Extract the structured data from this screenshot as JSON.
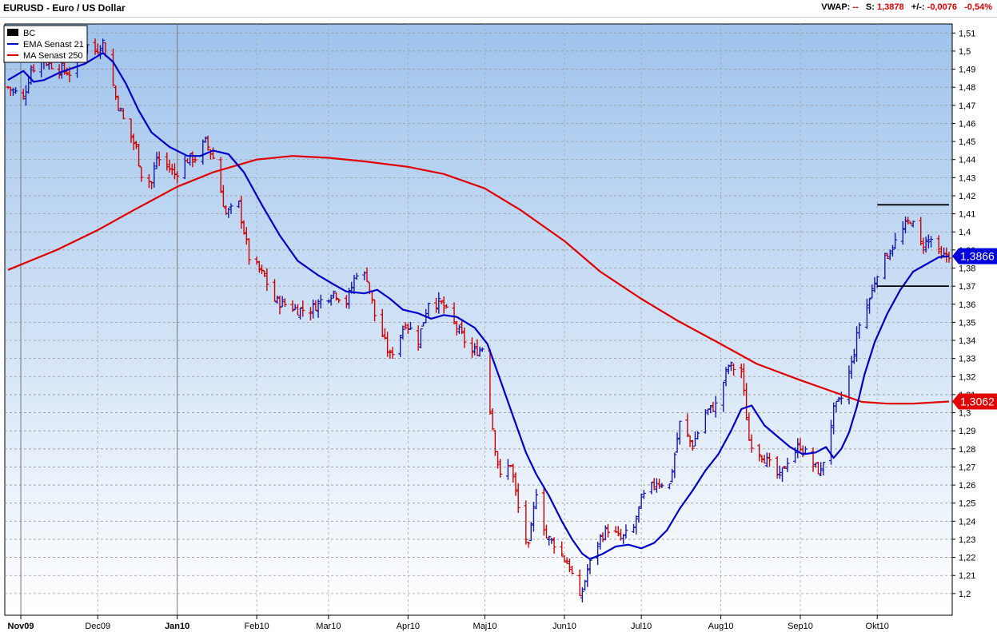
{
  "header": {
    "title": "EURUSD - Euro / US Dollar",
    "vwap_label": "VWAP:",
    "vwap_value": "--",
    "s_label": "S:",
    "s_value": "1,3878",
    "change_label": "+/-:",
    "change_value": "-0,0076",
    "change_pct": "-0,54%"
  },
  "legend": [
    {
      "label": "BC",
      "color": "#000000",
      "kind": "box"
    },
    {
      "label": "EMA  Senast 21",
      "color": "#0000cc",
      "kind": "line"
    },
    {
      "label": "MA  Senast 250",
      "color": "#e00000",
      "kind": "line"
    }
  ],
  "price_tags": [
    {
      "label": "1,3866",
      "value": 1.3866,
      "color": "#0000dd"
    },
    {
      "label": "1,3062",
      "value": 1.3062,
      "color": "#e00000"
    }
  ],
  "colors": {
    "bg_top": "#9fc3ec",
    "bg_bottom": "#ffffff",
    "up_bar": "#1818b0",
    "down_bar": "#d00000",
    "ema": "#0000cc",
    "ma": "#e00000",
    "level_line": "#000000"
  },
  "chart_data": {
    "type": "ohlc",
    "title": "EURUSD - Euro / US Dollar",
    "ylim": [
      1.188,
      1.515
    ],
    "grid": true,
    "legend_position": "top-left",
    "x_start_date": "2009-10-27",
    "x_end_date": "2010-10-29",
    "y_ticks": [
      "1,2",
      "1,21",
      "1,22",
      "1,23",
      "1,24",
      "1,25",
      "1,26",
      "1,27",
      "1,28",
      "1,29",
      "1,3",
      "1,31",
      "1,32",
      "1,33",
      "1,34",
      "1,35",
      "1,36",
      "1,37",
      "1,38",
      "1,39",
      "1,4",
      "1,41",
      "1,42",
      "1,43",
      "1,44",
      "1,45",
      "1,46",
      "1,47",
      "1,48",
      "1,49",
      "1,5",
      "1,51"
    ],
    "x_ticks": [
      {
        "label": "Nov09",
        "date": "2009-11-01",
        "bold": true
      },
      {
        "label": "Dec09",
        "date": "2009-12-01",
        "bold": false
      },
      {
        "label": "Jan10",
        "date": "2010-01-01",
        "bold": true
      },
      {
        "label": "Feb10",
        "date": "2010-02-01",
        "bold": false
      },
      {
        "label": "Mar10",
        "date": "2010-03-01",
        "bold": false
      },
      {
        "label": "Apr10",
        "date": "2010-04-01",
        "bold": false
      },
      {
        "label": "Maj10",
        "date": "2010-05-01",
        "bold": false
      },
      {
        "label": "Jun10",
        "date": "2010-06-01",
        "bold": false
      },
      {
        "label": "Jul10",
        "date": "2010-07-01",
        "bold": false
      },
      {
        "label": "Aug10",
        "date": "2010-08-01",
        "bold": false
      },
      {
        "label": "Sep10",
        "date": "2010-09-01",
        "bold": false
      },
      {
        "label": "Okt10",
        "date": "2010-10-01",
        "bold": false
      }
    ],
    "close_path": [
      [
        "2009-10-27",
        1.48
      ],
      [
        "2009-11-02",
        1.474
      ],
      [
        "2009-11-05",
        1.49
      ],
      [
        "2009-11-10",
        1.495
      ],
      [
        "2009-11-16",
        1.49
      ],
      [
        "2009-11-20",
        1.488
      ],
      [
        "2009-11-25",
        1.505
      ],
      [
        "2009-11-30",
        1.5
      ],
      [
        "2009-12-03",
        1.505
      ],
      [
        "2009-12-08",
        1.475
      ],
      [
        "2009-12-11",
        1.462
      ],
      [
        "2009-12-16",
        1.446
      ],
      [
        "2009-12-18",
        1.432
      ],
      [
        "2009-12-22",
        1.427
      ],
      [
        "2009-12-24",
        1.441
      ],
      [
        "2009-12-28",
        1.437
      ],
      [
        "2009-12-31",
        1.432
      ],
      [
        "2010-01-05",
        1.44
      ],
      [
        "2010-01-08",
        1.441
      ],
      [
        "2010-01-12",
        1.45
      ],
      [
        "2010-01-15",
        1.441
      ],
      [
        "2010-01-20",
        1.41
      ],
      [
        "2010-01-25",
        1.415
      ],
      [
        "2010-01-29",
        1.386
      ],
      [
        "2010-02-04",
        1.375
      ],
      [
        "2010-02-08",
        1.362
      ],
      [
        "2010-02-12",
        1.36
      ],
      [
        "2010-02-17",
        1.357
      ],
      [
        "2010-02-22",
        1.357
      ],
      [
        "2010-02-26",
        1.362
      ],
      [
        "2010-03-03",
        1.367
      ],
      [
        "2010-03-08",
        1.361
      ],
      [
        "2010-03-12",
        1.378
      ],
      [
        "2010-03-16",
        1.375
      ],
      [
        "2010-03-19",
        1.354
      ],
      [
        "2010-03-25",
        1.331
      ],
      [
        "2010-03-31",
        1.35
      ],
      [
        "2010-04-05",
        1.34
      ],
      [
        "2010-04-09",
        1.362
      ],
      [
        "2010-04-14",
        1.36
      ],
      [
        "2010-04-20",
        1.347
      ],
      [
        "2010-04-26",
        1.333
      ],
      [
        "2010-04-30",
        1.336
      ],
      [
        "2010-05-05",
        1.281
      ],
      [
        "2010-05-07",
        1.264
      ],
      [
        "2010-05-11",
        1.272
      ],
      [
        "2010-05-14",
        1.247
      ],
      [
        "2010-05-18",
        1.225
      ],
      [
        "2010-05-21",
        1.257
      ],
      [
        "2010-05-25",
        1.231
      ],
      [
        "2010-05-28",
        1.228
      ],
      [
        "2010-06-03",
        1.215
      ],
      [
        "2010-06-07",
        1.196
      ],
      [
        "2010-06-10",
        1.213
      ],
      [
        "2010-06-15",
        1.231
      ],
      [
        "2010-06-18",
        1.236
      ],
      [
        "2010-06-23",
        1.23
      ],
      [
        "2010-06-28",
        1.236
      ],
      [
        "2010-07-01",
        1.252
      ],
      [
        "2010-07-07",
        1.262
      ],
      [
        "2010-07-12",
        1.26
      ],
      [
        "2010-07-16",
        1.294
      ],
      [
        "2010-07-21",
        1.282
      ],
      [
        "2010-07-26",
        1.3
      ],
      [
        "2010-07-30",
        1.304
      ],
      [
        "2010-08-04",
        1.326
      ],
      [
        "2010-08-09",
        1.323
      ],
      [
        "2010-08-12",
        1.285
      ],
      [
        "2010-08-17",
        1.277
      ],
      [
        "2010-08-20",
        1.271
      ],
      [
        "2010-08-24",
        1.264
      ],
      [
        "2010-08-27",
        1.274
      ],
      [
        "2010-09-01",
        1.282
      ],
      [
        "2010-09-06",
        1.271
      ],
      [
        "2010-09-09",
        1.267
      ],
      [
        "2010-09-14",
        1.301
      ],
      [
        "2010-09-17",
        1.308
      ],
      [
        "2010-09-21",
        1.327
      ],
      [
        "2010-09-24",
        1.349
      ],
      [
        "2010-09-28",
        1.363
      ],
      [
        "2010-10-01",
        1.378
      ],
      [
        "2010-10-06",
        1.39
      ],
      [
        "2010-10-11",
        1.401
      ],
      [
        "2010-10-14",
        1.407
      ],
      [
        "2010-10-18",
        1.393
      ],
      [
        "2010-10-22",
        1.396
      ],
      [
        "2010-10-26",
        1.385
      ],
      [
        "2010-10-29",
        1.388
      ]
    ],
    "ema21": [
      [
        "2009-10-27",
        1.484
      ],
      [
        "2009-11-02",
        1.489
      ],
      [
        "2009-11-06",
        1.483
      ],
      [
        "2009-11-10",
        1.484
      ],
      [
        "2009-11-16",
        1.488
      ],
      [
        "2009-11-20",
        1.49
      ],
      [
        "2009-11-26",
        1.493
      ],
      [
        "2009-12-03",
        1.499
      ],
      [
        "2009-12-07",
        1.494
      ],
      [
        "2009-12-12",
        1.482
      ],
      [
        "2009-12-17",
        1.467
      ],
      [
        "2009-12-22",
        1.455
      ],
      [
        "2009-12-29",
        1.447
      ],
      [
        "2010-01-05",
        1.442
      ],
      [
        "2010-01-10",
        1.442
      ],
      [
        "2010-01-15",
        1.445
      ],
      [
        "2010-01-21",
        1.443
      ],
      [
        "2010-01-27",
        1.433
      ],
      [
        "2010-02-03",
        1.415
      ],
      [
        "2010-02-10",
        1.398
      ],
      [
        "2010-02-17",
        1.384
      ],
      [
        "2010-02-25",
        1.376
      ],
      [
        "2010-03-03",
        1.371
      ],
      [
        "2010-03-08",
        1.367
      ],
      [
        "2010-03-15",
        1.366
      ],
      [
        "2010-03-20",
        1.368
      ],
      [
        "2010-03-25",
        1.363
      ],
      [
        "2010-03-30",
        1.357
      ],
      [
        "2010-04-05",
        1.355
      ],
      [
        "2010-04-10",
        1.352
      ],
      [
        "2010-04-15",
        1.354
      ],
      [
        "2010-04-20",
        1.353
      ],
      [
        "2010-04-27",
        1.347
      ],
      [
        "2010-05-02",
        1.338
      ],
      [
        "2010-05-07",
        1.318
      ],
      [
        "2010-05-12",
        1.298
      ],
      [
        "2010-05-17",
        1.278
      ],
      [
        "2010-05-21",
        1.266
      ],
      [
        "2010-05-26",
        1.254
      ],
      [
        "2010-05-31",
        1.24
      ],
      [
        "2010-06-04",
        1.23
      ],
      [
        "2010-06-08",
        1.222
      ],
      [
        "2010-06-11",
        1.219
      ],
      [
        "2010-06-16",
        1.222
      ],
      [
        "2010-06-21",
        1.226
      ],
      [
        "2010-06-26",
        1.227
      ],
      [
        "2010-07-01",
        1.225
      ],
      [
        "2010-07-06",
        1.228
      ],
      [
        "2010-07-11",
        1.235
      ],
      [
        "2010-07-16",
        1.247
      ],
      [
        "2010-07-21",
        1.257
      ],
      [
        "2010-07-26",
        1.268
      ],
      [
        "2010-07-31",
        1.277
      ],
      [
        "2010-08-05",
        1.29
      ],
      [
        "2010-08-09",
        1.302
      ],
      [
        "2010-08-13",
        1.304
      ],
      [
        "2010-08-18",
        1.293
      ],
      [
        "2010-08-23",
        1.287
      ],
      [
        "2010-08-28",
        1.281
      ],
      [
        "2010-09-02",
        1.277
      ],
      [
        "2010-09-07",
        1.278
      ],
      [
        "2010-09-11",
        1.281
      ],
      [
        "2010-09-14",
        1.275
      ],
      [
        "2010-09-17",
        1.28
      ],
      [
        "2010-09-20",
        1.289
      ],
      [
        "2010-09-23",
        1.303
      ],
      [
        "2010-09-26",
        1.321
      ],
      [
        "2010-09-30",
        1.339
      ],
      [
        "2010-10-05",
        1.355
      ],
      [
        "2010-10-10",
        1.368
      ],
      [
        "2010-10-15",
        1.378
      ],
      [
        "2010-10-20",
        1.382
      ],
      [
        "2010-10-25",
        1.386
      ],
      [
        "2010-10-29",
        1.3866
      ]
    ],
    "ma250": [
      [
        "2009-10-27",
        1.379
      ],
      [
        "2009-11-15",
        1.39
      ],
      [
        "2009-12-01",
        1.401
      ],
      [
        "2009-12-15",
        1.412
      ],
      [
        "2010-01-01",
        1.425
      ],
      [
        "2010-01-15",
        1.433
      ],
      [
        "2010-02-01",
        1.44
      ],
      [
        "2010-02-15",
        1.442
      ],
      [
        "2010-03-01",
        1.441
      ],
      [
        "2010-03-15",
        1.439
      ],
      [
        "2010-04-01",
        1.436
      ],
      [
        "2010-04-15",
        1.432
      ],
      [
        "2010-05-01",
        1.424
      ],
      [
        "2010-05-15",
        1.412
      ],
      [
        "2010-06-01",
        1.395
      ],
      [
        "2010-06-15",
        1.378
      ],
      [
        "2010-07-01",
        1.363
      ],
      [
        "2010-07-15",
        1.351
      ],
      [
        "2010-08-01",
        1.338
      ],
      [
        "2010-08-15",
        1.327
      ],
      [
        "2010-09-01",
        1.318
      ],
      [
        "2010-09-15",
        1.311
      ],
      [
        "2010-09-25",
        1.306
      ],
      [
        "2010-10-05",
        1.305
      ],
      [
        "2010-10-15",
        1.305
      ],
      [
        "2010-10-29",
        1.3062
      ]
    ],
    "levels": [
      {
        "value": 1.415,
        "from": "2010-10-01",
        "to": "2010-10-29"
      },
      {
        "value": 1.37,
        "from": "2010-10-01",
        "to": "2010-10-29"
      }
    ]
  }
}
